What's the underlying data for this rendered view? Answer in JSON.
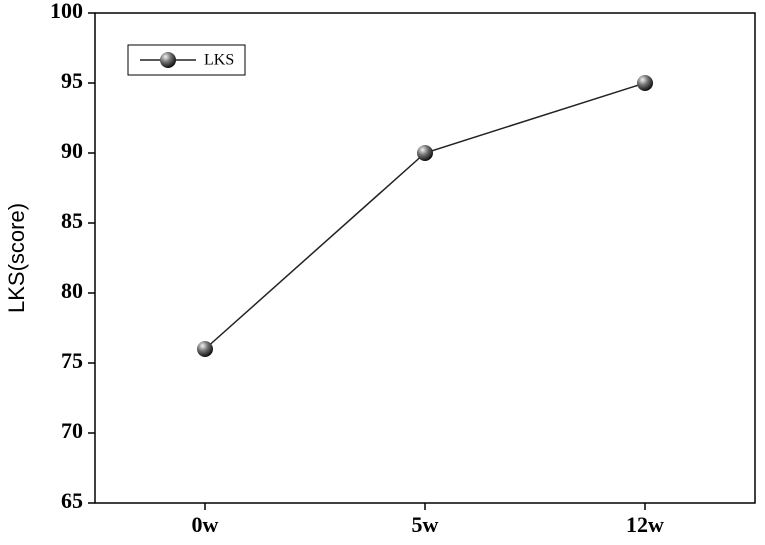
{
  "chart_data": {
    "type": "line",
    "y_label": "LKS(score)",
    "categories": [
      "0w",
      "5w",
      "12w"
    ],
    "series": [
      {
        "name": "LKS",
        "color": "#222222",
        "values": [
          76,
          90,
          95
        ]
      }
    ],
    "ylim": [
      65,
      100
    ],
    "yticks": [
      65,
      70,
      75,
      80,
      85,
      90,
      95,
      100
    ],
    "legend": "upper left",
    "grid": false
  }
}
